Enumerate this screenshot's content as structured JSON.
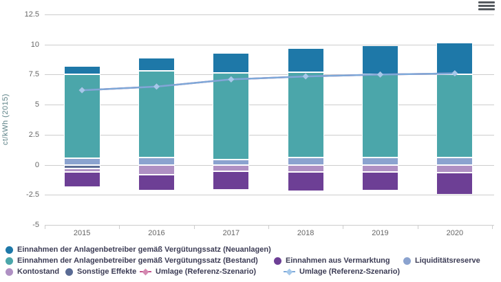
{
  "toolbar": {
    "menu_icon": "hamburger-menu"
  },
  "axes": {
    "y_title": "ct/kWh (2015)",
    "y_ticks": [
      "12.5",
      "10",
      "7.5",
      "5",
      "2.5",
      "0",
      "-2.5",
      "-5"
    ],
    "x_ticks": [
      "2015",
      "2016",
      "2017",
      "2018",
      "2019",
      "2020"
    ]
  },
  "colors": {
    "grid": "#cccccc",
    "axis_text": "#666666",
    "y_title": "#5d8287",
    "legend_text": "#3c3c55",
    "menu_icon": "#555a5f"
  },
  "chart_data": {
    "type": "bar",
    "subtype": "stacked-bars-with-line-overlay",
    "title": "",
    "xlabel": "",
    "ylabel": "ct/kWh (2015)",
    "ylim": [
      -5,
      12.5
    ],
    "ytick_interval": 2.5,
    "grid": true,
    "legend_position": "bottom",
    "categories": [
      "2015",
      "2016",
      "2017",
      "2018",
      "2019",
      "2020"
    ],
    "stack_order_positive_bottom_to_top": [
      "liquiditaetsreserve",
      "bestand",
      "neuanlagen"
    ],
    "stack_order_negative_top_to_bottom": [
      "sonstige_effekte",
      "kontostand",
      "vermarktung"
    ],
    "series": [
      {
        "key": "neuanlagen",
        "name": "Einnahmen der Anlagenbetreiber gemäß Vergütungssatz (Neuanlagen)",
        "type": "bar",
        "marker": "circle",
        "color": "#1e78a8",
        "values": [
          0.7,
          1.1,
          1.65,
          2.0,
          2.4,
          2.6
        ]
      },
      {
        "key": "bestand",
        "name": "Einnahmen der Anlagenbetreiber gemäß Vergütungssatz (Bestand)",
        "type": "bar",
        "marker": "circle",
        "color": "#4ba6aa",
        "values": [
          6.95,
          7.2,
          7.2,
          7.1,
          6.95,
          6.95
        ]
      },
      {
        "key": "liquiditaetsreserve",
        "name": "Liquiditätsreserve",
        "type": "bar",
        "marker": "circle",
        "color": "#8ba3cf",
        "values": [
          0.55,
          0.6,
          0.45,
          0.6,
          0.6,
          0.6
        ]
      },
      {
        "key": "sonstige_effekte",
        "name": "Sonstige Effekte",
        "type": "bar",
        "marker": "circle",
        "color": "#5a6b94",
        "values": [
          -0.3,
          -0.05,
          -0.05,
          -0.05,
          -0.05,
          -0.05
        ]
      },
      {
        "key": "kontostand",
        "name": "Kontostand",
        "type": "bar",
        "marker": "circle",
        "color": "#af90c3",
        "values": [
          -0.3,
          -0.8,
          -0.5,
          -0.55,
          -0.55,
          -0.6
        ]
      },
      {
        "key": "vermarktung",
        "name": "Einnahmen aus Vermarktung",
        "type": "bar",
        "marker": "circle",
        "color": "#6d3f95",
        "values": [
          -1.25,
          -1.3,
          -1.55,
          -1.6,
          -1.55,
          -1.85
        ]
      },
      {
        "key": "umlage_referenz_pink",
        "name": "Umlage (Referenz-Szenario)",
        "type": "line",
        "marker": "diamond",
        "color": "#c4548e",
        "marker_fill": "#d488b0",
        "values": [
          6.2,
          6.5,
          7.1,
          7.35,
          7.5,
          7.6
        ]
      },
      {
        "key": "umlage_referenz_blau",
        "name": "Umlage (Referenz-Szenario)",
        "type": "line",
        "marker": "diamond",
        "color": "#7ea9d9",
        "marker_fill": "#a5c8ea",
        "values": [
          6.2,
          6.5,
          7.1,
          7.35,
          7.5,
          7.6
        ]
      }
    ],
    "legend_rows": [
      [
        "neuanlagen"
      ],
      [
        "bestand",
        "vermarktung",
        "liquiditaetsreserve"
      ],
      [
        "kontostand",
        "sonstige_effekte",
        "umlage_referenz_pink",
        "umlage_referenz_blau"
      ]
    ]
  }
}
